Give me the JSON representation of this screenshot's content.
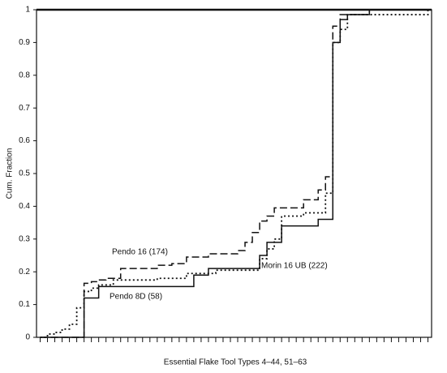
{
  "chart_data": {
    "type": "step-line",
    "ylabel": "Cum. Fraction",
    "xlabel": "Essential Flake Tool Types 4–44, 51–63",
    "ylim": [
      0,
      1
    ],
    "yticks": [
      0,
      0.1,
      0.2,
      0.3,
      0.4,
      0.5,
      0.6,
      0.7,
      0.8,
      0.9,
      1
    ],
    "categories": [
      null,
      null,
      null,
      null,
      null,
      null,
      null,
      null,
      null,
      null,
      null,
      null,
      null,
      null,
      null,
      null,
      null,
      null,
      null,
      null,
      null,
      null,
      null,
      null,
      null,
      null,
      null,
      null,
      null,
      null,
      null,
      null,
      null,
      null,
      null,
      null,
      null,
      null,
      null,
      null,
      null,
      null,
      null,
      null,
      null,
      null,
      null,
      null,
      null,
      null,
      null,
      null,
      null,
      null
    ],
    "series": [
      {
        "name": "Pendo 16 (174)",
        "color": "#111111",
        "dash": "dashed",
        "values": [
          0,
          0,
          0,
          0,
          0,
          0,
          0.165,
          0.17,
          0.175,
          0.18,
          0.18,
          0.21,
          0.21,
          0.21,
          0.21,
          0.21,
          0.22,
          0.22,
          0.225,
          0.225,
          0.245,
          0.245,
          0.245,
          0.255,
          0.255,
          0.255,
          0.255,
          0.265,
          0.29,
          0.32,
          0.355,
          0.37,
          0.395,
          0.395,
          0.395,
          0.395,
          0.42,
          0.42,
          0.45,
          0.49,
          0.95,
          0.985,
          0.985,
          0.985,
          0.985,
          1,
          1,
          1,
          1,
          1,
          1,
          1,
          1,
          1
        ]
      },
      {
        "name": "Morin 16 UB (222)",
        "color": "#111111",
        "dash": "dotted",
        "values": [
          0,
          0.01,
          0.015,
          0.025,
          0.04,
          0.09,
          0.14,
          0.15,
          0.16,
          0.16,
          0.175,
          0.175,
          0.175,
          0.175,
          0.175,
          0.175,
          0.18,
          0.18,
          0.18,
          0.18,
          0.195,
          0.195,
          0.195,
          0.195,
          0.205,
          0.205,
          0.205,
          0.205,
          0.205,
          0.205,
          0.24,
          0.27,
          0.3,
          0.37,
          0.37,
          0.37,
          0.38,
          0.38,
          0.38,
          0.44,
          0.9,
          0.94,
          0.985,
          0.985,
          0.985,
          0.985,
          0.985,
          0.985,
          0.985,
          0.985,
          0.985,
          0.985,
          0.985,
          1
        ]
      },
      {
        "name": "Pendo 8D (58)",
        "color": "#111111",
        "dash": "solid",
        "values": [
          0,
          0,
          0,
          0,
          0,
          0,
          0.12,
          0.12,
          0.155,
          0.155,
          0.155,
          0.155,
          0.155,
          0.155,
          0.155,
          0.155,
          0.155,
          0.155,
          0.155,
          0.155,
          0.155,
          0.19,
          0.19,
          0.21,
          0.21,
          0.21,
          0.21,
          0.21,
          0.21,
          0.21,
          0.25,
          0.29,
          0.29,
          0.34,
          0.34,
          0.34,
          0.34,
          0.34,
          0.36,
          0.36,
          0.9,
          0.97,
          0.985,
          0.985,
          0.985,
          1,
          1,
          1,
          1,
          1,
          1,
          1,
          1,
          1
        ]
      }
    ]
  }
}
